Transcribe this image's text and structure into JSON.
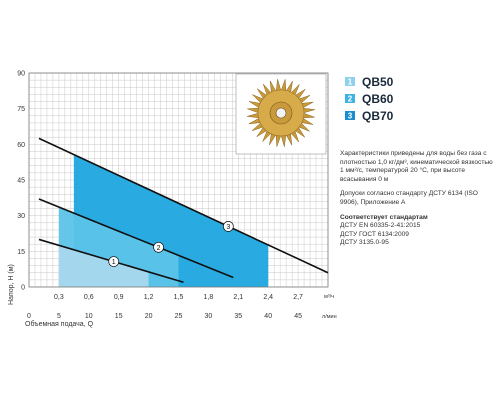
{
  "chart_data": {
    "type": "line",
    "y_axis": {
      "label": "Напор, H (м)",
      "ticks": [
        "0",
        "15",
        "30",
        "45",
        "60",
        "75",
        "90"
      ],
      "range": [
        0,
        90
      ]
    },
    "x_axis_m3h": {
      "unit": "м³/ч",
      "ticks": [
        "0,3",
        "0,6",
        "0,9",
        "1,2",
        "1,5",
        "1,8",
        "2,1",
        "2,4",
        "2,7"
      ],
      "range": [
        0,
        3.0
      ]
    },
    "x_axis_lmin": {
      "label": "Объемная подача, Q",
      "unit": "л/мин",
      "ticks": [
        "0",
        "5",
        "10",
        "15",
        "20",
        "25",
        "30",
        "35",
        "40",
        "45"
      ],
      "range": [
        0,
        50
      ]
    },
    "grid": true,
    "series": [
      {
        "name": "QB50",
        "number": "1",
        "color": "#a8d8ee",
        "x": [
          0.1,
          1.55
        ],
        "y": [
          20,
          2
        ],
        "band": {
          "x": [
            0.3,
            1.2
          ],
          "y_top": [
            17.5,
            6.5
          ]
        }
      },
      {
        "name": "QB60",
        "number": "2",
        "color": "#5cc3e8",
        "x": [
          0.1,
          2.05
        ],
        "y": [
          37,
          4
        ],
        "band": {
          "x": [
            0.3,
            1.5
          ],
          "y_top": [
            33.5,
            13.2
          ]
        }
      },
      {
        "name": "QB70",
        "number": "3",
        "color": "#1ea7e0",
        "x": [
          0.1,
          3.0
        ],
        "y": [
          62.5,
          6
        ],
        "band": {
          "x": [
            0.45,
            2.4
          ],
          "y_top": [
            55.5,
            17.7
          ]
        }
      }
    ]
  },
  "legend": {
    "items": [
      {
        "number": "1",
        "label": "QB50",
        "color": "#8fd0ec"
      },
      {
        "number": "2",
        "label": "QB60",
        "color": "#3fb4e4"
      },
      {
        "number": "3",
        "label": "QB70",
        "color": "#1a8fd0"
      }
    ]
  },
  "info": {
    "characteristics": "Характеристики приведены для воды без газа с плотностью 1,0 кг/дм³, кинематической вязкостью 1 мм²/с, температурой 20 °С, при высоте всасывания 0 м",
    "tolerances": "Допуски согласно стандарту ДСТУ 6134 (ISO 9906), Приложение А",
    "standards_title": "Соответствует стандартам",
    "standards": [
      "ДСТУ EN 60335-2-41:2015",
      "ДСТУ ГОСТ 6134:2009",
      "ДСТУ 3135.0-95"
    ]
  },
  "colors": {
    "curve": "#111111",
    "grid": "#bdbdbd",
    "frame": "#7a7a7a"
  },
  "image": {
    "subject": "impeller-photo"
  }
}
